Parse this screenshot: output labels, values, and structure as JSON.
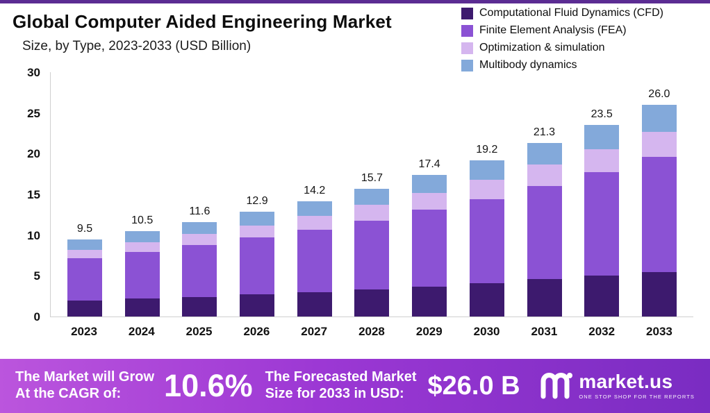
{
  "header": {
    "title": "Global Computer Aided Engineering Market",
    "subtitle": "Size, by Type, 2023-2033 (USD Billion)"
  },
  "chart_data": {
    "type": "bar",
    "stacked": true,
    "title": "Global Computer Aided Engineering Market Size, by Type, 2023-2033 (USD Billion)",
    "categories": [
      "2023",
      "2024",
      "2025",
      "2026",
      "2027",
      "2028",
      "2029",
      "2030",
      "2031",
      "2032",
      "2033"
    ],
    "series": [
      {
        "name": "Computational Fluid Dynamics (CFD)",
        "color": "#3d1a6e",
        "values": [
          2.0,
          2.2,
          2.4,
          2.7,
          3.0,
          3.3,
          3.7,
          4.1,
          4.6,
          5.0,
          5.5
        ]
      },
      {
        "name": "Finite Element Analysis (FEA)",
        "color": "#8b52d4",
        "values": [
          5.2,
          5.7,
          6.4,
          7.0,
          7.7,
          8.5,
          9.4,
          10.3,
          11.4,
          12.7,
          14.1
        ]
      },
      {
        "name": "Optimization & simulation",
        "color": "#d5b6ef",
        "values": [
          1.0,
          1.2,
          1.3,
          1.5,
          1.7,
          1.9,
          2.1,
          2.4,
          2.7,
          2.8,
          3.1
        ]
      },
      {
        "name": "Multibody dynamics",
        "color": "#83a9da",
        "values": [
          1.3,
          1.4,
          1.5,
          1.7,
          1.8,
          2.0,
          2.2,
          2.4,
          2.6,
          3.0,
          3.3
        ]
      }
    ],
    "totals": [
      9.5,
      10.5,
      11.6,
      12.9,
      14.2,
      15.7,
      17.4,
      19.2,
      21.3,
      23.5,
      26.0
    ],
    "xlabel": "",
    "ylabel": "",
    "ylim": [
      0,
      30
    ],
    "yticks": [
      0,
      5,
      10,
      15,
      20,
      25,
      30
    ],
    "grid": false,
    "legend_position": "top-right"
  },
  "footer": {
    "cagr_label_line1": "The Market will Grow",
    "cagr_label_line2": "At the CAGR of:",
    "cagr_value": "10.6%",
    "forecast_label_line1": "The Forecasted Market",
    "forecast_label_line2": "Size for 2033 in USD:",
    "forecast_value": "$26.0 B",
    "brand_name": "market.us",
    "brand_tagline": "ONE STOP SHOP FOR THE REPORTS"
  },
  "colors": {
    "top_strip": "#5b2c93",
    "banner_gradient_start": "#bb55dd",
    "banner_gradient_end": "#7a2cc2",
    "axis_line": "#cfcfcf",
    "text": "#0d0d0d"
  }
}
